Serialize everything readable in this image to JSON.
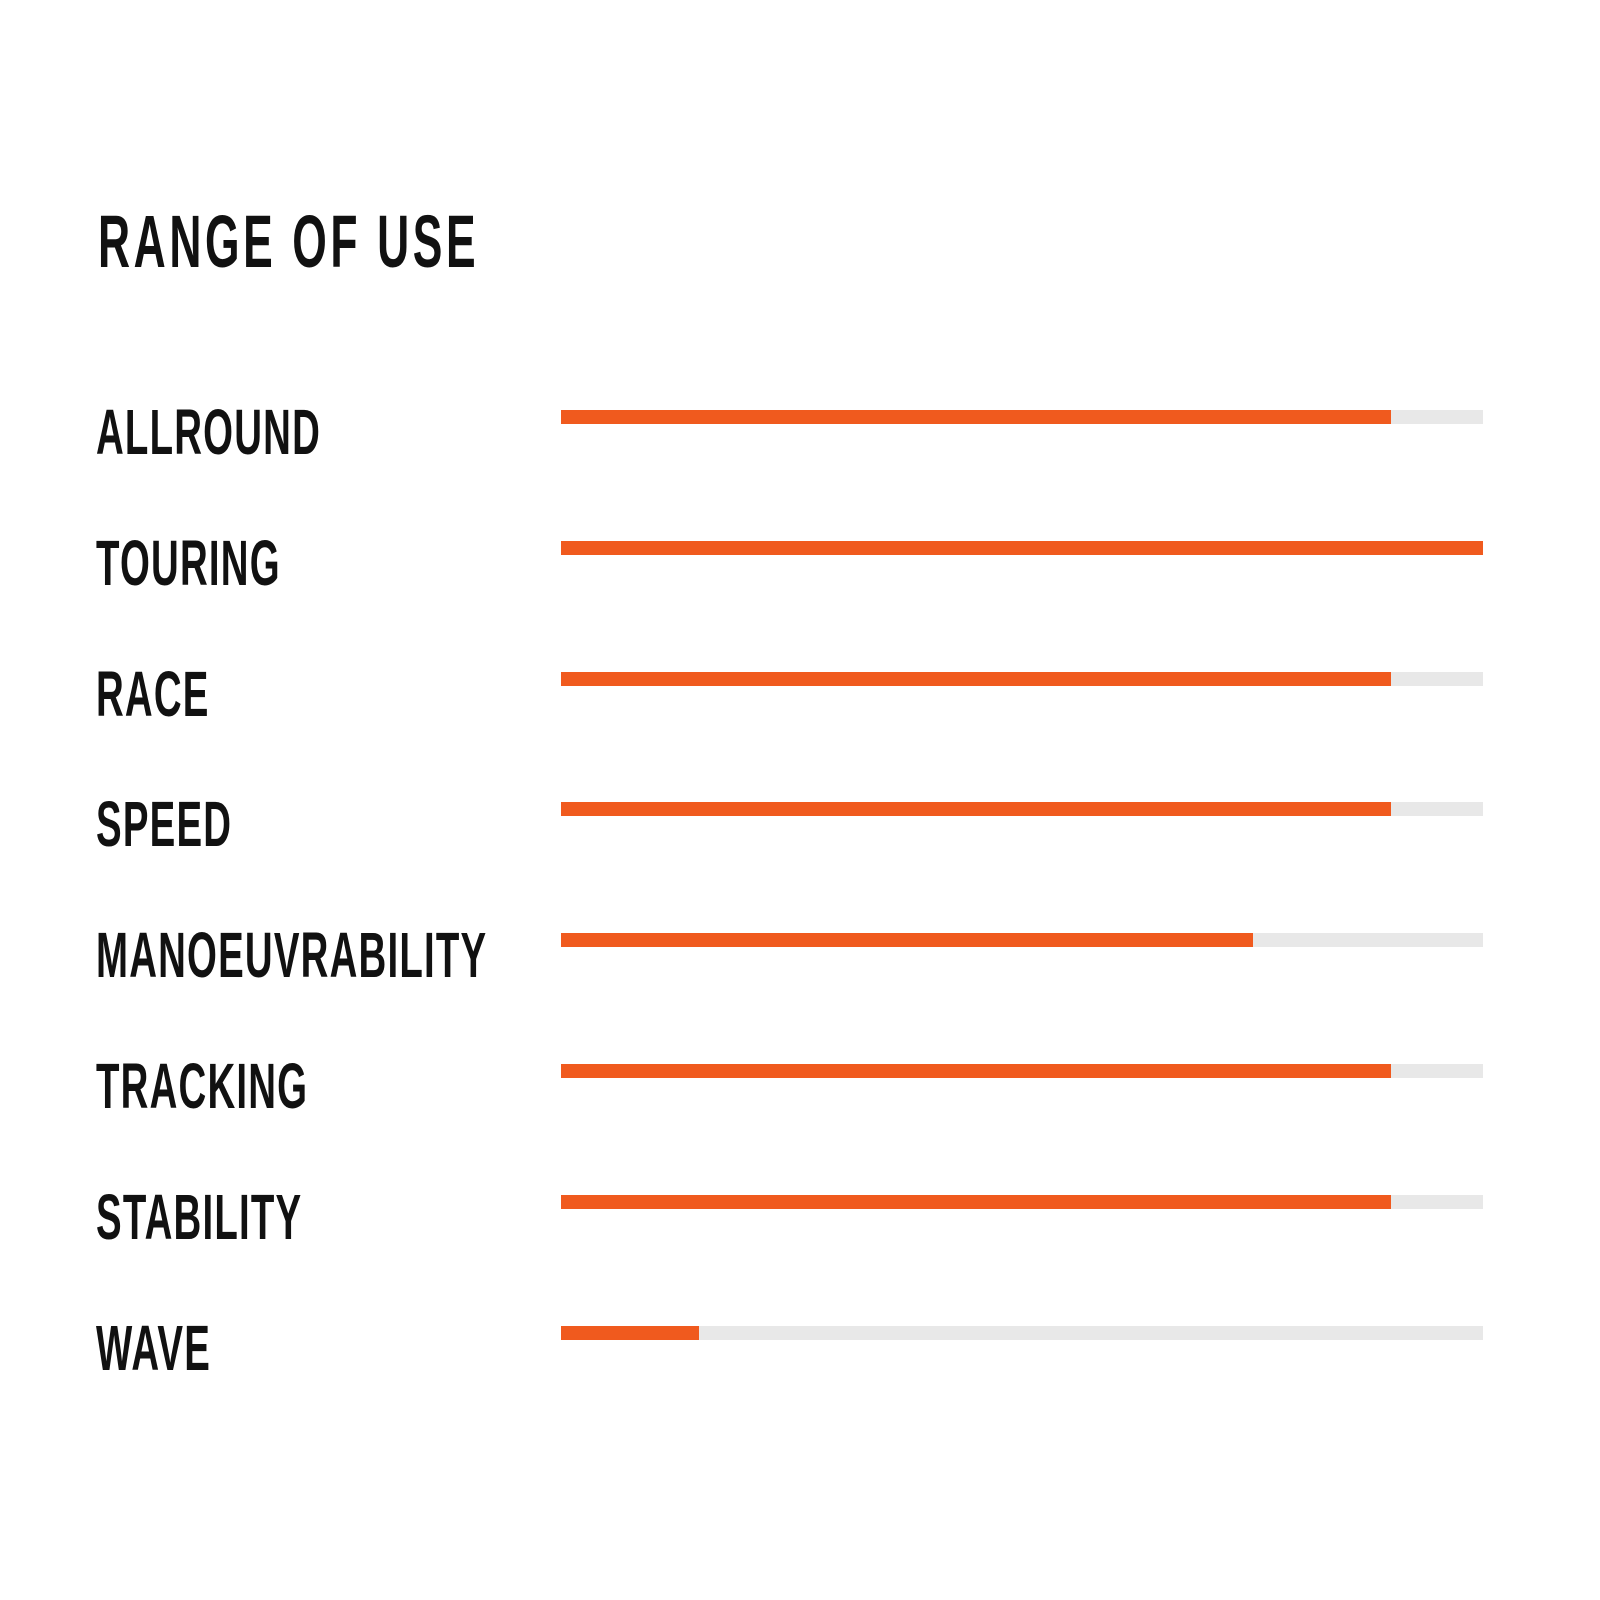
{
  "chart_data": {
    "type": "bar",
    "orientation": "horizontal",
    "title": "RANGE OF USE",
    "categories": [
      "ALLROUND",
      "TOURING",
      "RACE",
      "SPEED",
      "MANOEUVRABILITY",
      "TRACKING",
      "STABILITY",
      "WAVE"
    ],
    "values": [
      90,
      100,
      90,
      90,
      75,
      90,
      90,
      15
    ],
    "xlim": [
      0,
      100
    ],
    "unit": "percent of full bar",
    "grid": false,
    "colors": {
      "fill": "#f05a1e",
      "track": "#e8e8e8",
      "text": "#111111"
    }
  }
}
